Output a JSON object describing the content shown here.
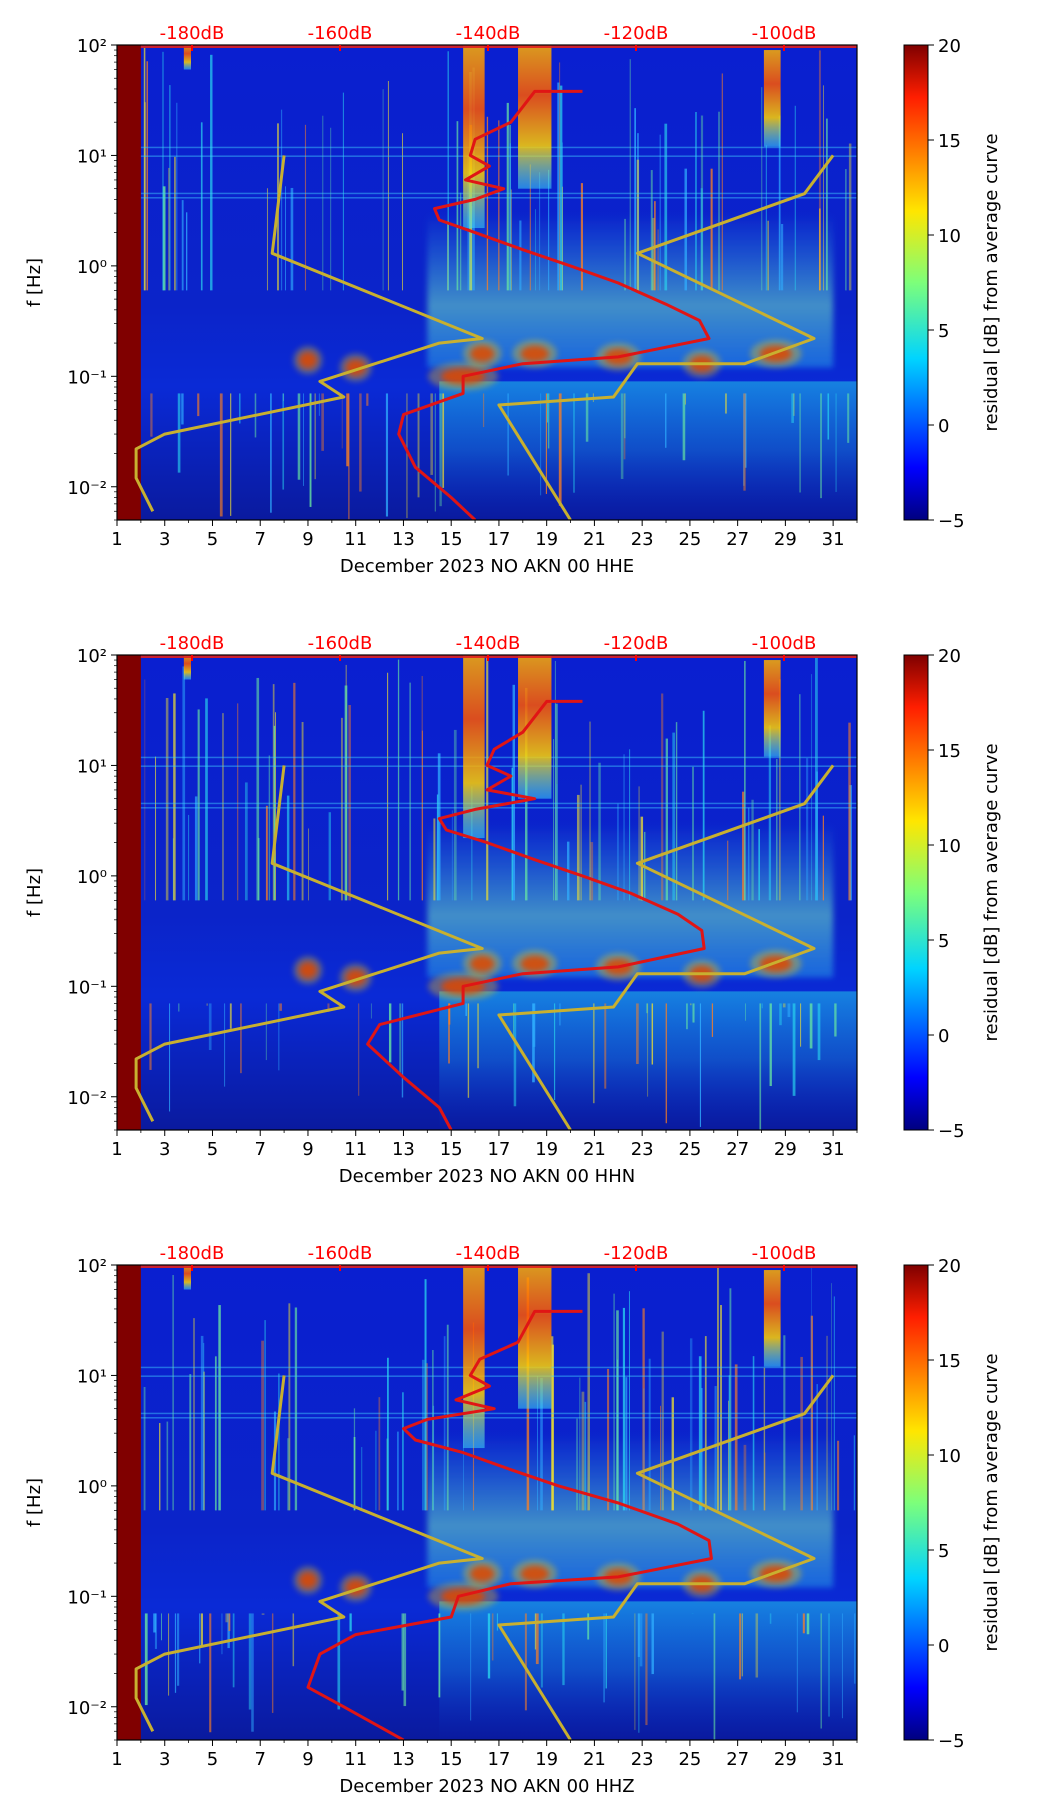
{
  "colorbar": {
    "label": "residual [dB] from average curve",
    "ticks": [
      "20",
      "15",
      "10",
      "5",
      "0",
      "−5"
    ],
    "min": -5,
    "max": 20,
    "colormap": "jet"
  },
  "colors": {
    "top_axis_text": "#ff0000",
    "psd_curve": "#e01515",
    "noise_model_curves": "#c8b030"
  },
  "chart_data": [
    {
      "type": "heatmap",
      "xlabel": "December 2023 NO AKN 00 HHE",
      "ylabel": "f [Hz]",
      "x_ticks": [
        "1",
        "3",
        "5",
        "7",
        "9",
        "11",
        "13",
        "15",
        "17",
        "19",
        "21",
        "23",
        "25",
        "27",
        "29",
        "31"
      ],
      "y_ticks": [
        "10²",
        "10¹",
        "10⁰",
        "10⁻¹",
        "10⁻²"
      ],
      "top_ticks": [
        "-180dB",
        "-160dB",
        "-140dB",
        "-120dB",
        "-100dB"
      ],
      "xlim": [
        1,
        32
      ],
      "ylim": [
        0.005,
        100
      ],
      "yscale": "log",
      "psd_curve": [
        [
          20.5,
          38
        ],
        [
          18.5,
          38
        ],
        [
          17.5,
          20
        ],
        [
          16,
          14
        ],
        [
          15.8,
          10
        ],
        [
          16.6,
          8
        ],
        [
          15.6,
          6
        ],
        [
          17.2,
          5
        ],
        [
          16,
          4
        ],
        [
          14.3,
          3.3
        ],
        [
          14.5,
          2.6
        ],
        [
          16,
          2
        ],
        [
          18,
          1.4
        ],
        [
          20,
          1
        ],
        [
          22,
          0.7
        ],
        [
          24,
          0.45
        ],
        [
          25.4,
          0.32
        ],
        [
          25.8,
          0.22
        ],
        [
          22,
          0.15
        ],
        [
          18,
          0.13
        ],
        [
          15.5,
          0.1
        ],
        [
          15.5,
          0.07
        ],
        [
          13,
          0.045
        ],
        [
          12.8,
          0.03
        ],
        [
          13.5,
          0.015
        ],
        [
          15,
          0.008
        ],
        [
          16,
          0.005
        ]
      ],
      "noise_model_upper": [
        [
          31,
          10
        ],
        [
          29.8,
          4.5
        ],
        [
          22.8,
          1.3
        ],
        [
          30.2,
          0.22
        ],
        [
          27.3,
          0.13
        ],
        [
          22.8,
          0.13
        ],
        [
          21.8,
          0.065
        ],
        [
          17,
          0.055
        ],
        [
          20,
          0.005
        ]
      ],
      "noise_model_lower": [
        [
          8,
          10
        ],
        [
          7.5,
          1.3
        ],
        [
          16.3,
          0.22
        ],
        [
          14.5,
          0.2
        ],
        [
          9.5,
          0.09
        ],
        [
          10.5,
          0.065
        ],
        [
          3,
          0.03
        ],
        [
          1.8,
          0.022
        ],
        [
          1.8,
          0.012
        ],
        [
          2.5,
          0.006
        ]
      ]
    },
    {
      "type": "heatmap",
      "xlabel": "December 2023 NO AKN 00 HHN",
      "ylabel": "f [Hz]",
      "x_ticks": [
        "1",
        "3",
        "5",
        "7",
        "9",
        "11",
        "13",
        "15",
        "17",
        "19",
        "21",
        "23",
        "25",
        "27",
        "29",
        "31"
      ],
      "y_ticks": [
        "10²",
        "10¹",
        "10⁰",
        "10⁻¹",
        "10⁻²"
      ],
      "top_ticks": [
        "-180dB",
        "-160dB",
        "-140dB",
        "-120dB",
        "-100dB"
      ],
      "xlim": [
        1,
        32
      ],
      "ylim": [
        0.005,
        100
      ],
      "yscale": "log",
      "psd_curve": [
        [
          20.5,
          38
        ],
        [
          19,
          38
        ],
        [
          18,
          20
        ],
        [
          16.8,
          14
        ],
        [
          16.5,
          10
        ],
        [
          17.5,
          8
        ],
        [
          16.5,
          6
        ],
        [
          18.5,
          5
        ],
        [
          16,
          4
        ],
        [
          14.5,
          3.3
        ],
        [
          14.8,
          2.6
        ],
        [
          16.5,
          2
        ],
        [
          18.5,
          1.4
        ],
        [
          20.5,
          1
        ],
        [
          22.5,
          0.7
        ],
        [
          24.5,
          0.45
        ],
        [
          25.5,
          0.32
        ],
        [
          25.6,
          0.22
        ],
        [
          22,
          0.15
        ],
        [
          18,
          0.13
        ],
        [
          15.5,
          0.1
        ],
        [
          15.5,
          0.07
        ],
        [
          12,
          0.045
        ],
        [
          11.5,
          0.03
        ],
        [
          13,
          0.015
        ],
        [
          14.5,
          0.008
        ],
        [
          15,
          0.005
        ]
      ],
      "noise_model_upper": [
        [
          31,
          10
        ],
        [
          29.8,
          4.5
        ],
        [
          22.8,
          1.3
        ],
        [
          30.2,
          0.22
        ],
        [
          27.3,
          0.13
        ],
        [
          22.8,
          0.13
        ],
        [
          21.8,
          0.065
        ],
        [
          17,
          0.055
        ],
        [
          20,
          0.005
        ]
      ],
      "noise_model_lower": [
        [
          8,
          10
        ],
        [
          7.5,
          1.3
        ],
        [
          16.3,
          0.22
        ],
        [
          14.5,
          0.2
        ],
        [
          9.5,
          0.09
        ],
        [
          10.5,
          0.065
        ],
        [
          3,
          0.03
        ],
        [
          1.8,
          0.022
        ],
        [
          1.8,
          0.012
        ],
        [
          2.5,
          0.006
        ]
      ]
    },
    {
      "type": "heatmap",
      "xlabel": "December 2023 NO AKN 00 HHZ",
      "ylabel": "f [Hz]",
      "x_ticks": [
        "1",
        "3",
        "5",
        "7",
        "9",
        "11",
        "13",
        "15",
        "17",
        "19",
        "21",
        "23",
        "25",
        "27",
        "29",
        "31"
      ],
      "y_ticks": [
        "10²",
        "10¹",
        "10⁰",
        "10⁻¹",
        "10⁻²"
      ],
      "top_ticks": [
        "-180dB",
        "-160dB",
        "-140dB",
        "-120dB",
        "-100dB"
      ],
      "xlim": [
        1,
        32
      ],
      "ylim": [
        0.005,
        100
      ],
      "yscale": "log",
      "psd_curve": [
        [
          20.5,
          38
        ],
        [
          18.5,
          38
        ],
        [
          17.8,
          20
        ],
        [
          16.2,
          14
        ],
        [
          15.8,
          10
        ],
        [
          16.6,
          8
        ],
        [
          15.2,
          6
        ],
        [
          16.8,
          5
        ],
        [
          14,
          4
        ],
        [
          13,
          3.3
        ],
        [
          13.5,
          2.6
        ],
        [
          15.5,
          2
        ],
        [
          17.5,
          1.4
        ],
        [
          19.5,
          1
        ],
        [
          22,
          0.7
        ],
        [
          24.5,
          0.45
        ],
        [
          25.8,
          0.32
        ],
        [
          25.9,
          0.22
        ],
        [
          22,
          0.15
        ],
        [
          17.5,
          0.13
        ],
        [
          15.3,
          0.1
        ],
        [
          15,
          0.065
        ],
        [
          11,
          0.045
        ],
        [
          9.5,
          0.03
        ],
        [
          9,
          0.015
        ],
        [
          10.5,
          0.01
        ],
        [
          13,
          0.005
        ]
      ],
      "noise_model_upper": [
        [
          31,
          10
        ],
        [
          29.8,
          4.5
        ],
        [
          22.8,
          1.3
        ],
        [
          30.2,
          0.22
        ],
        [
          27.3,
          0.13
        ],
        [
          22.8,
          0.13
        ],
        [
          21.8,
          0.065
        ],
        [
          17,
          0.055
        ],
        [
          20,
          0.005
        ]
      ],
      "noise_model_lower": [
        [
          8,
          10
        ],
        [
          7.5,
          1.3
        ],
        [
          16.3,
          0.22
        ],
        [
          14.5,
          0.2
        ],
        [
          9.5,
          0.09
        ],
        [
          10.5,
          0.065
        ],
        [
          3,
          0.03
        ],
        [
          1.8,
          0.022
        ],
        [
          1.8,
          0.012
        ],
        [
          2.5,
          0.006
        ]
      ]
    }
  ]
}
